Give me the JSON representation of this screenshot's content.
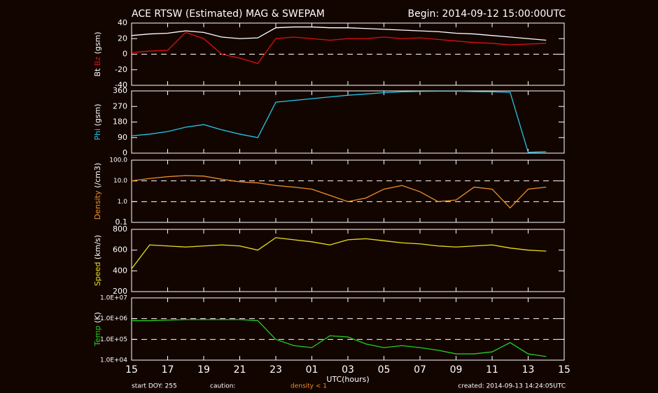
{
  "header": {
    "title": "ACE RTSW (Estimated) MAG & SWEPAM",
    "begin": "Begin: 2014-09-12 15:00:00UTC"
  },
  "chart_data": [
    {
      "type": "line",
      "ylabel": "(gsm)",
      "ylim": [
        -40,
        40
      ],
      "yticks": [
        -40,
        -20,
        0,
        20,
        40
      ],
      "ref_lines": [
        0
      ],
      "x": [
        0,
        1,
        2,
        3,
        4,
        5,
        6,
        7,
        8,
        9,
        10,
        11,
        12,
        13,
        14,
        15,
        16,
        17,
        18,
        19,
        20,
        21,
        22,
        23
      ],
      "series": [
        {
          "name": "Bt",
          "color": "#ffffff",
          "values": [
            24,
            26,
            27,
            30,
            28,
            22,
            20,
            21,
            34,
            35,
            35,
            34,
            34,
            33,
            32,
            31,
            30,
            29,
            27,
            26,
            24,
            22,
            20,
            18
          ]
        },
        {
          "name": "Bz",
          "color": "#e01010",
          "values": [
            2,
            4,
            5,
            28,
            20,
            0,
            -5,
            -12,
            20,
            22,
            20,
            18,
            20,
            20,
            22,
            20,
            21,
            19,
            17,
            15,
            14,
            12,
            13,
            14
          ]
        }
      ]
    },
    {
      "type": "line",
      "ylabel": "(gsm)",
      "ylim": [
        0,
        360
      ],
      "yticks": [
        0,
        90,
        180,
        270,
        360
      ],
      "x": [
        0,
        1,
        2,
        3,
        4,
        5,
        6,
        7,
        8,
        9,
        10,
        11,
        12,
        13,
        14,
        15,
        16,
        17,
        18,
        19,
        20,
        21,
        22,
        23
      ],
      "series": [
        {
          "name": "Phi",
          "color": "#22c8e8",
          "values": [
            100,
            110,
            125,
            150,
            165,
            135,
            110,
            90,
            295,
            305,
            315,
            325,
            335,
            342,
            350,
            355,
            357,
            358,
            358,
            356,
            355,
            352,
            5,
            8
          ]
        }
      ]
    },
    {
      "type": "line",
      "ylabel": "(/cm3)",
      "log": true,
      "ylim": [
        0.1,
        100
      ],
      "yticks": [
        0.1,
        {
          "value": 1,
          "label": "1.0"
        },
        {
          "value": 10,
          "label": "10.0"
        },
        {
          "value": 100,
          "label": "100.0"
        }
      ],
      "ref_lines": [
        1,
        10
      ],
      "x": [
        0,
        1,
        2,
        3,
        4,
        5,
        6,
        7,
        8,
        9,
        10,
        11,
        12,
        13,
        14,
        15,
        16,
        17,
        18,
        19,
        20,
        21,
        22,
        23
      ],
      "series": [
        {
          "name": "Density",
          "color": "#f0902a",
          "values": [
            10,
            13,
            16,
            18,
            17,
            12,
            9,
            8,
            6,
            5,
            4,
            2,
            1,
            1.5,
            4,
            6,
            3,
            1,
            1.2,
            5,
            4,
            0.5,
            4,
            5
          ]
        }
      ]
    },
    {
      "type": "line",
      "ylabel": "(km/s)",
      "ylim": [
        200,
        800
      ],
      "yticks": [
        200,
        400,
        600,
        800
      ],
      "x": [
        0,
        1,
        2,
        3,
        4,
        5,
        6,
        7,
        8,
        9,
        10,
        11,
        12,
        13,
        14,
        15,
        16,
        17,
        18,
        19,
        20,
        21,
        22,
        23
      ],
      "series": [
        {
          "name": "Speed",
          "color": "#e8e020",
          "values": [
            420,
            650,
            640,
            630,
            640,
            650,
            640,
            600,
            720,
            700,
            680,
            650,
            700,
            710,
            690,
            670,
            660,
            640,
            630,
            640,
            650,
            620,
            600,
            590
          ]
        }
      ]
    },
    {
      "type": "line",
      "ylabel": "(K)",
      "log": true,
      "ylim": [
        10000,
        10000000
      ],
      "yticks": [
        {
          "value": 10000,
          "label": "1.0E+04"
        },
        {
          "value": 100000,
          "label": "1.0E+05"
        },
        {
          "value": 1000000,
          "label": "1.0E+06"
        },
        {
          "value": 10000000,
          "label": "1.0E+07"
        }
      ],
      "ref_lines": [
        100000,
        1000000
      ],
      "x": [
        0,
        1,
        2,
        3,
        4,
        5,
        6,
        7,
        8,
        9,
        10,
        11,
        12,
        13,
        14,
        15,
        16,
        17,
        18,
        19,
        20,
        21,
        22,
        23
      ],
      "series": [
        {
          "name": "Temp",
          "color": "#20d020",
          "values": [
            800000,
            800000,
            850000,
            900000,
            900000,
            900000,
            900000,
            800000,
            100000,
            50000,
            40000,
            150000,
            130000,
            60000,
            40000,
            50000,
            40000,
            30000,
            20000,
            20000,
            25000,
            70000,
            20000,
            15000
          ]
        }
      ],
      "xlabel": "UTC(hours)",
      "xlim": [
        0,
        24
      ],
      "xticks": [
        {
          "value": 0,
          "label": "15"
        },
        {
          "value": 2,
          "label": "17"
        },
        {
          "value": 4,
          "label": "19"
        },
        {
          "value": 6,
          "label": "21"
        },
        {
          "value": 8,
          "label": "23"
        },
        {
          "value": 10,
          "label": "01"
        },
        {
          "value": 12,
          "label": "03"
        },
        {
          "value": 14,
          "label": "05"
        },
        {
          "value": 16,
          "label": "07"
        },
        {
          "value": 18,
          "label": "09"
        },
        {
          "value": 20,
          "label": "11"
        },
        {
          "value": 22,
          "label": "13"
        },
        {
          "value": 24,
          "label": "15"
        }
      ]
    }
  ],
  "footer": {
    "start": "start DOY: 255",
    "caution": "caution:",
    "density_note": "density < 1",
    "created": "created: 2014-09-13 14:24:05UTC"
  }
}
